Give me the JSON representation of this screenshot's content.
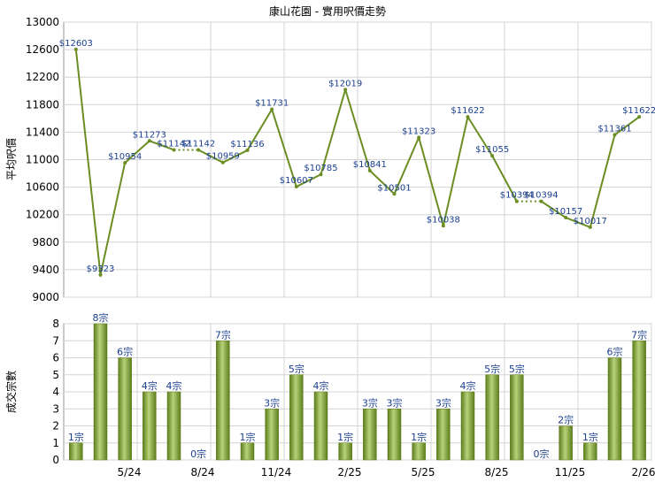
{
  "chart_data": [
    {
      "type": "line",
      "title": "康山花園 - 實用呎價走勢",
      "ylabel": "平均呎價",
      "ylim": [
        9000,
        13000
      ],
      "yticks": [
        9000,
        9400,
        9800,
        10200,
        10600,
        11000,
        11400,
        11800,
        12200,
        12600,
        13000
      ],
      "grid": true,
      "color": "#6b8e23",
      "values": [
        12603,
        9323,
        10954,
        11273,
        11142,
        11142,
        10959,
        11136,
        11731,
        10607,
        10785,
        12019,
        10841,
        10501,
        11323,
        10038,
        11622,
        11055,
        10394,
        10394,
        10157,
        10017,
        11361,
        11622
      ],
      "labels": [
        "$12603",
        "$9323",
        "$10954",
        "$11273",
        "$11142",
        "$11142",
        "$10959",
        "$11136",
        "$11731",
        "$10607",
        "$10785",
        "$12019",
        "$10841",
        "$10501",
        "$11323",
        "$10038",
        "$11622",
        "$11055",
        "$10394",
        "$10394",
        "$10157",
        "$10017",
        "$11361",
        "$11622"
      ],
      "dotted_segments": [
        [
          4,
          5
        ],
        [
          18,
          19
        ]
      ]
    },
    {
      "type": "bar",
      "ylabel": "成交宗數",
      "ylim": [
        0,
        8
      ],
      "yticks": [
        0,
        1,
        2,
        3,
        4,
        5,
        6,
        7,
        8
      ],
      "grid": true,
      "bar_color": "#7a9c34",
      "values": [
        1,
        8,
        6,
        4,
        4,
        0,
        7,
        1,
        3,
        5,
        4,
        1,
        3,
        3,
        1,
        3,
        4,
        5,
        5,
        0,
        2,
        1,
        6,
        7
      ],
      "labels": [
        "1宗",
        "8宗",
        "6宗",
        "4宗",
        "4宗",
        "0宗",
        "7宗",
        "1宗",
        "3宗",
        "5宗",
        "4宗",
        "1宗",
        "3宗",
        "3宗",
        "1宗",
        "3宗",
        "4宗",
        "5宗",
        "5宗",
        "0宗",
        "2宗",
        "1宗",
        "6宗",
        "7宗"
      ],
      "xtick_labels": [
        "5/24",
        "8/24",
        "11/24",
        "2/25",
        "5/25",
        "8/25",
        "11/25",
        "2/26"
      ],
      "xtick_indices": [
        2,
        5,
        8,
        11,
        14,
        17,
        20,
        23
      ]
    }
  ]
}
